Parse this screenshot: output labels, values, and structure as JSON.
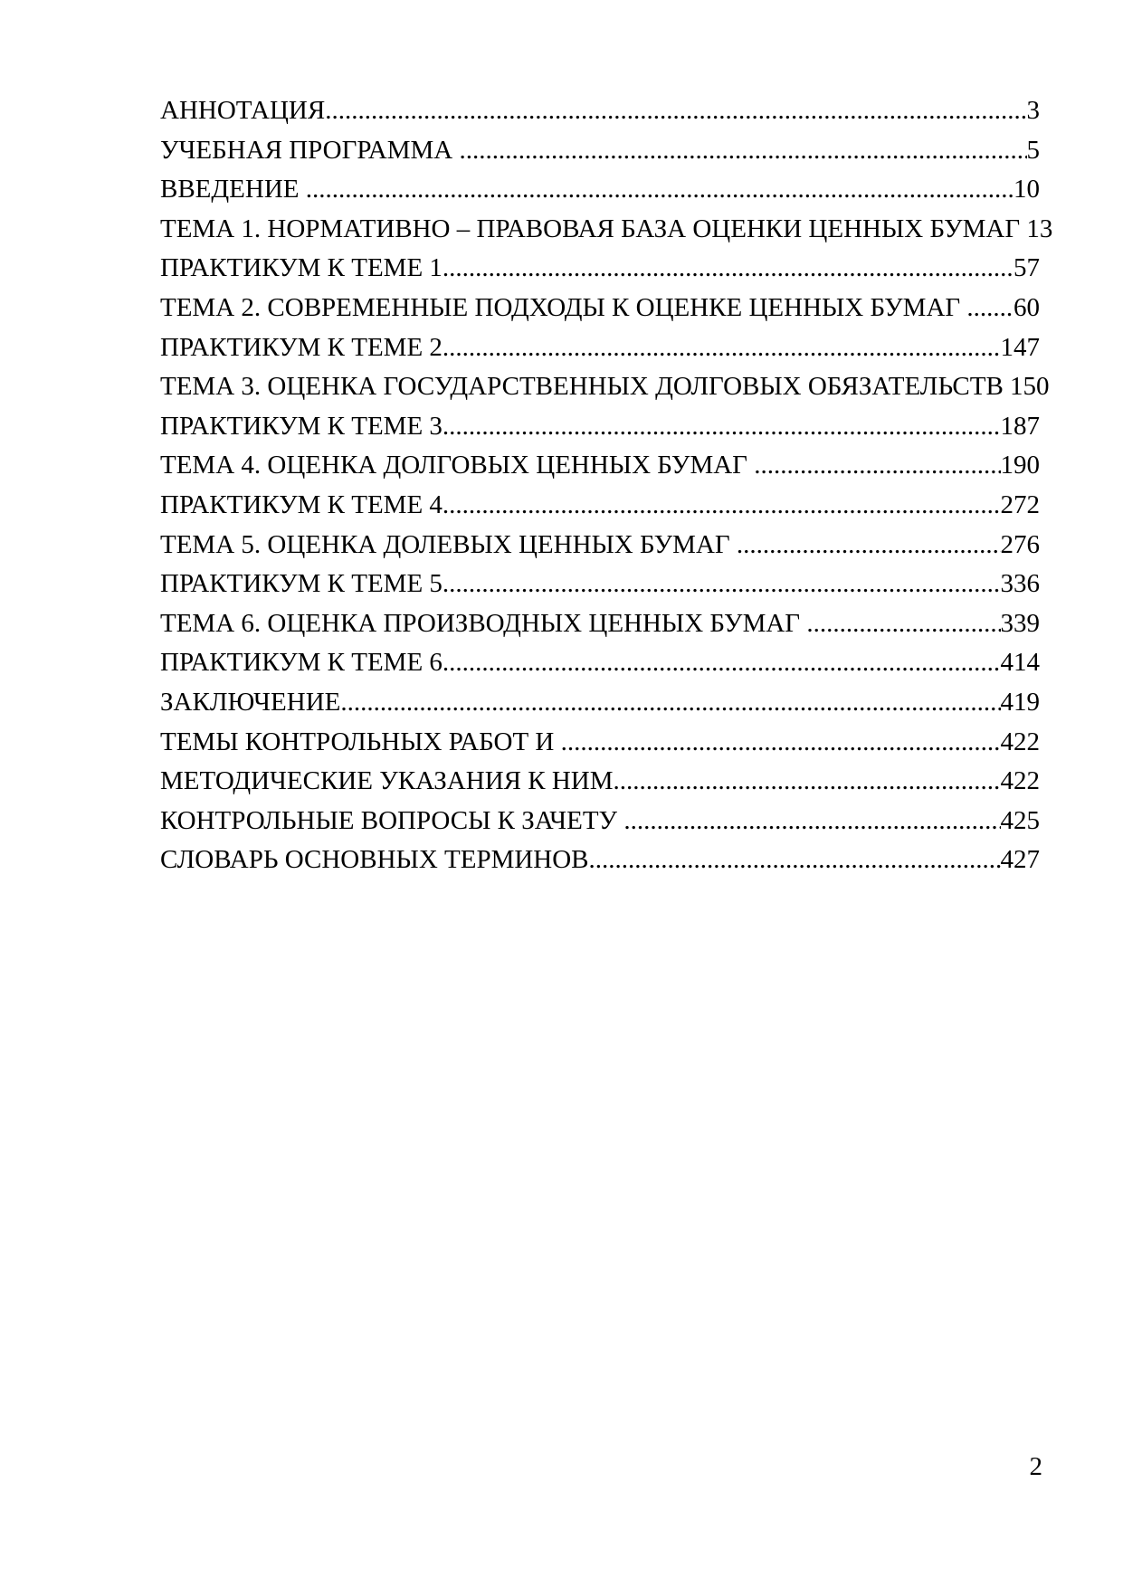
{
  "document": {
    "footer_page_number": "2"
  },
  "toc": {
    "entries": [
      {
        "title": "АННОТАЦИЯ",
        "page": "3"
      },
      {
        "title": "УЧЕБНАЯ ПРОГРАММА ",
        "page": "5"
      },
      {
        "title": "ВВЕДЕНИЕ ",
        "page": "10"
      },
      {
        "title": "ТЕМА 1. НОРМАТИВНО – ПРАВОВАЯ БАЗА ОЦЕНКИ ЦЕННЫХ БУМАГ ",
        "page": "13"
      },
      {
        "title": "ПРАКТИКУМ К ТЕМЕ 1",
        "page": "57"
      },
      {
        "title": "ТЕМА 2. СОВРЕМЕННЫЕ ПОДХОДЫ К ОЦЕНКЕ ЦЕННЫХ БУМАГ ",
        "page": "60"
      },
      {
        "title": "ПРАКТИКУМ К ТЕМЕ 2",
        "page": "147"
      },
      {
        "title": "ТЕМА 3. ОЦЕНКА ГОСУДАРСТВЕННЫХ ДОЛГОВЫХ ОБЯЗАТЕЛЬСТВ ",
        "page": "150"
      },
      {
        "title": "ПРАКТИКУМ К ТЕМЕ 3",
        "page": "187"
      },
      {
        "title": "ТЕМА 4. ОЦЕНКА ДОЛГОВЫХ ЦЕННЫХ БУМАГ ",
        "page": "190"
      },
      {
        "title": "ПРАКТИКУМ К ТЕМЕ 4",
        "page": "272"
      },
      {
        "title": "ТЕМА 5. ОЦЕНКА ДОЛЕВЫХ ЦЕННЫХ БУМАГ ",
        "page": "276"
      },
      {
        "title": "ПРАКТИКУМ К ТЕМЕ 5",
        "page": "336"
      },
      {
        "title": "ТЕМА 6. ОЦЕНКА ПРОИЗВОДНЫХ ЦЕННЫХ БУМАГ ",
        "page": "339"
      },
      {
        "title": "ПРАКТИКУМ К ТЕМЕ 6",
        "page": "414"
      },
      {
        "title": "ЗАКЛЮЧЕНИЕ",
        "page": "419"
      },
      {
        "title": "ТЕМЫ КОНТРОЛЬНЫХ РАБОТ И ",
        "page": "422"
      },
      {
        "title": "МЕТОДИЧЕСКИЕ УКАЗАНИЯ К НИМ",
        "page": "422"
      },
      {
        "title": "КОНТРОЛЬНЫЕ ВОПРОСЫ К ЗАЧЕТУ ",
        "page": "425"
      },
      {
        "title": "СЛОВАРЬ ОСНОВНЫХ ТЕРМИНОВ",
        "page": "427"
      }
    ]
  }
}
